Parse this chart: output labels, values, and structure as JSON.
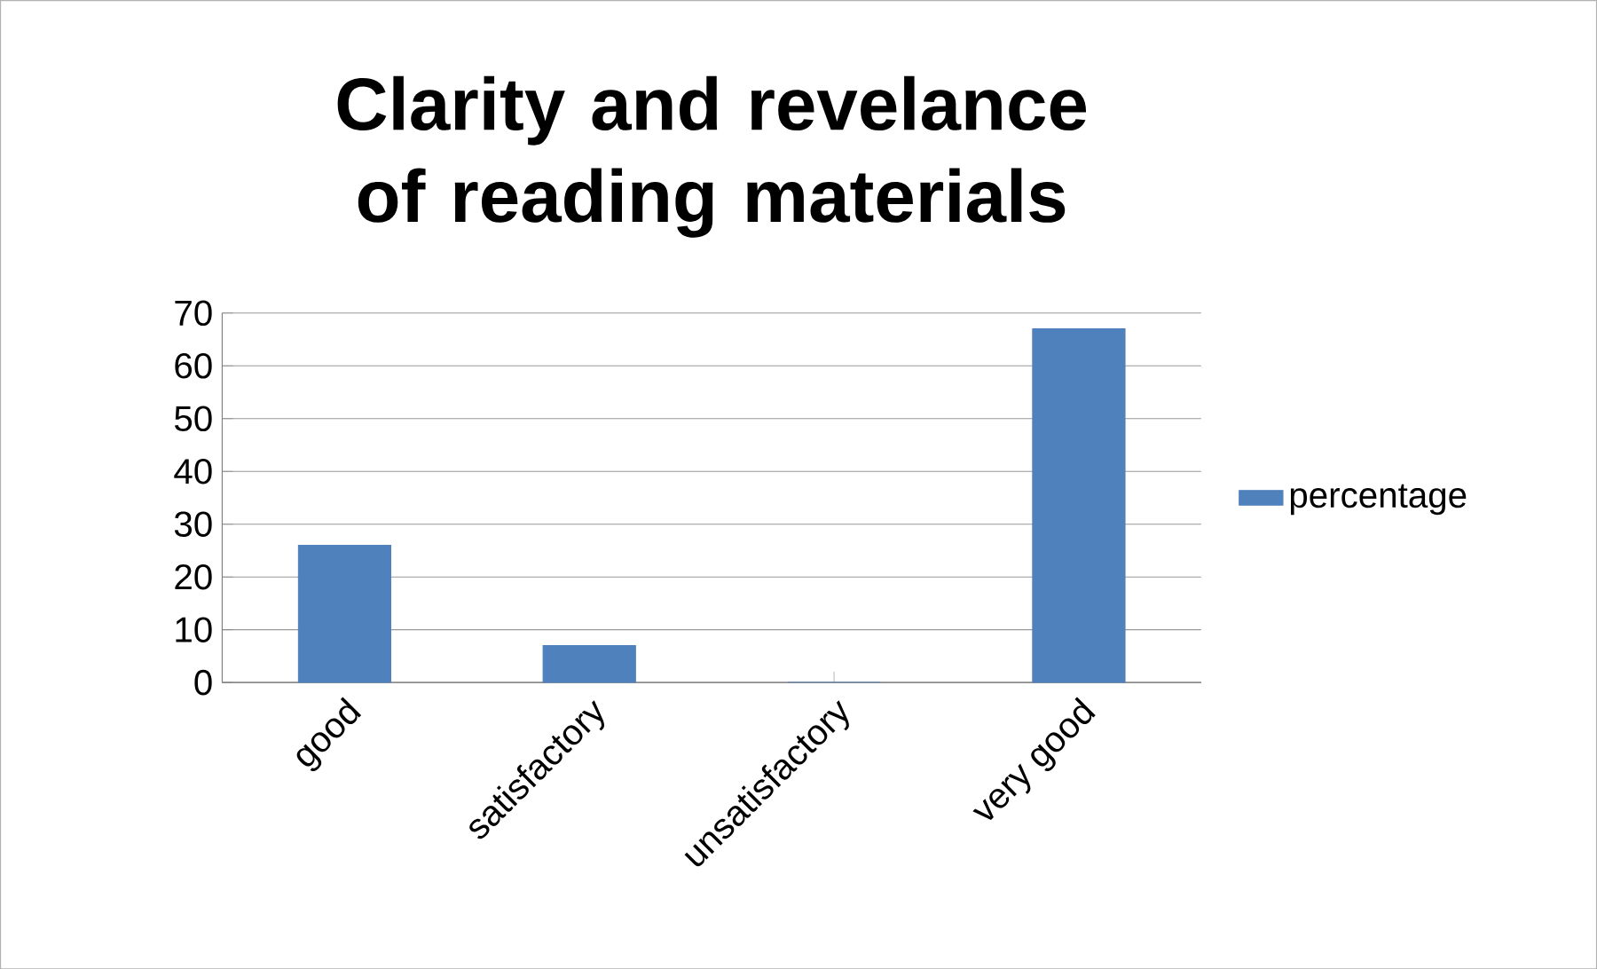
{
  "chart_data": {
    "type": "bar",
    "title": "Clarity and revelance of reading materials",
    "categories": [
      "good",
      "satisfactory",
      "unsatisfactory",
      "very good"
    ],
    "series": [
      {
        "name": "percentage",
        "color": "#4f81bd",
        "values": [
          26,
          7,
          0,
          67
        ]
      }
    ],
    "ylim": [
      0,
      70
    ],
    "yticks": [
      0,
      10,
      20,
      30,
      40,
      50,
      60,
      70
    ],
    "grid": "y",
    "legend": "right"
  }
}
